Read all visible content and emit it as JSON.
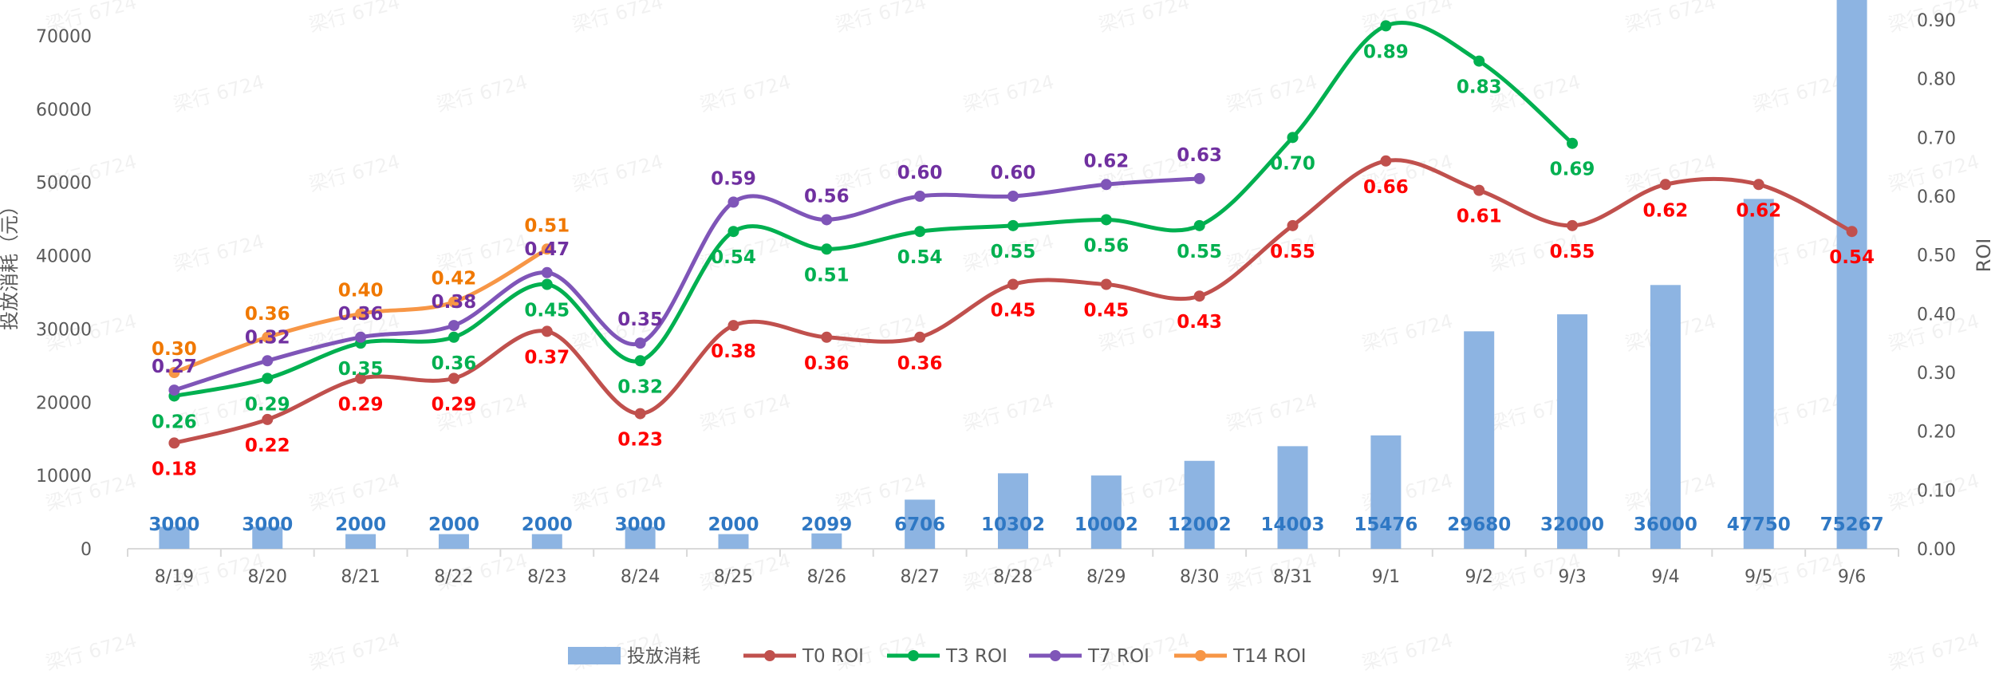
{
  "watermark": "梁行 6724",
  "chart_data": {
    "type": "bar+line",
    "categories": [
      "8/19",
      "8/20",
      "8/21",
      "8/22",
      "8/23",
      "8/24",
      "8/25",
      "8/26",
      "8/27",
      "8/28",
      "8/29",
      "8/30",
      "8/31",
      "9/1",
      "9/2",
      "9/3",
      "9/4",
      "9/5",
      "9/6"
    ],
    "left_axis": {
      "label": "投放消耗（元）",
      "ylim": [
        0,
        70000
      ],
      "ticks": [
        "0",
        "10000",
        "20000",
        "30000",
        "40000",
        "50000",
        "60000",
        "70000"
      ]
    },
    "right_axis": {
      "label": "ROI",
      "ylim": [
        0,
        0.9
      ],
      "ticks": [
        "0.00",
        "0.10",
        "0.20",
        "0.30",
        "0.40",
        "0.50",
        "0.60",
        "0.70",
        "0.80",
        "0.90"
      ]
    },
    "bar_series": {
      "name": "投放消耗",
      "color": "#8db4e2",
      "label_color": "#2f78c4",
      "values": [
        3000,
        3000,
        2000,
        2000,
        2000,
        3000,
        2000,
        2099,
        6706,
        10302,
        10002,
        12002,
        14003,
        15476,
        29680,
        32000,
        36000,
        47750,
        75267
      ]
    },
    "line_series": [
      {
        "name": "T0 ROI",
        "color": "#c0504d",
        "label_color": "#ff0000",
        "label_pos": "below",
        "values": [
          0.18,
          0.22,
          0.29,
          0.29,
          0.37,
          0.23,
          0.38,
          0.36,
          0.36,
          0.45,
          0.45,
          0.43,
          0.55,
          0.66,
          0.61,
          0.55,
          0.62,
          0.62,
          0.54
        ]
      },
      {
        "name": "T3 ROI",
        "color": "#00b050",
        "label_color": "#00b050",
        "label_pos": "below",
        "values": [
          0.26,
          0.29,
          0.35,
          0.36,
          0.45,
          0.32,
          0.54,
          0.51,
          0.54,
          0.55,
          0.56,
          0.55,
          0.7,
          0.89,
          0.83,
          0.69
        ]
      },
      {
        "name": "T7 ROI",
        "color": "#7f55b8",
        "label_color": "#7030a0",
        "label_pos": "above",
        "values": [
          0.27,
          0.32,
          0.36,
          0.38,
          0.47,
          0.35,
          0.59,
          0.56,
          0.6,
          0.6,
          0.62,
          0.63
        ]
      },
      {
        "name": "T14 ROI",
        "color": "#f79646",
        "label_color": "#f07800",
        "label_pos": "above",
        "values": [
          0.3,
          0.36,
          0.4,
          0.42,
          0.51
        ]
      }
    ],
    "legend": {
      "position": "bottom",
      "items": [
        "投放消耗",
        "T0 ROI",
        "T3 ROI",
        "T7 ROI",
        "T14 ROI"
      ]
    },
    "grid": false
  }
}
